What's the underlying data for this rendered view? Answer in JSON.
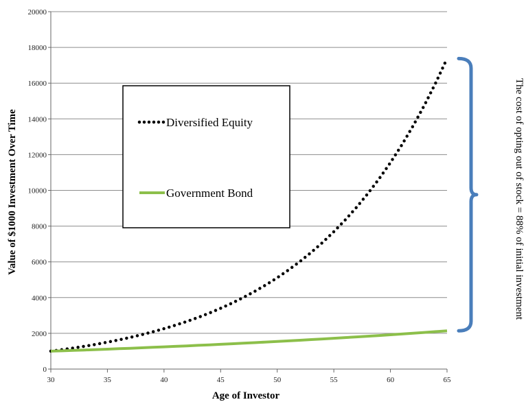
{
  "chart_data": {
    "type": "line",
    "title": "",
    "xlabel": "Age of Investor",
    "ylabel": "Value of $1000 Investment Over Time",
    "xlim": [
      30,
      65
    ],
    "ylim": [
      0,
      20000
    ],
    "x_ticks": [
      "30",
      "35",
      "40",
      "45",
      "50",
      "55",
      "60",
      "65"
    ],
    "y_ticks": [
      "0",
      "2000",
      "4000",
      "6000",
      "8000",
      "10000",
      "12000",
      "14000",
      "16000",
      "18000",
      "20000"
    ],
    "grid": true,
    "legend_position": "upper-left-center",
    "x": [
      30,
      31,
      32,
      33,
      34,
      35,
      36,
      37,
      38,
      39,
      40,
      41,
      42,
      43,
      44,
      45,
      46,
      47,
      48,
      49,
      50,
      51,
      52,
      53,
      54,
      55,
      56,
      57,
      58,
      59,
      60,
      61,
      62,
      63,
      64,
      65
    ],
    "series": [
      {
        "name": "Diversified Equity",
        "style": "dotted",
        "color": "#000000",
        "values": [
          1000,
          1085,
          1177,
          1277,
          1386,
          1504,
          1632,
          1770,
          1921,
          2084,
          2261,
          2453,
          2662,
          2888,
          3133,
          3400,
          3688,
          4002,
          4342,
          4711,
          5111,
          5546,
          6017,
          6528,
          7083,
          7685,
          8338,
          9047,
          9816,
          10650,
          11555,
          12537,
          13603,
          14759,
          16014,
          17375
        ]
      },
      {
        "name": "Government Bond",
        "style": "solid",
        "color": "#8cbf4a",
        "values": [
          1000,
          1022,
          1044,
          1067,
          1091,
          1115,
          1139,
          1164,
          1190,
          1216,
          1243,
          1270,
          1298,
          1327,
          1356,
          1386,
          1416,
          1447,
          1479,
          1512,
          1545,
          1579,
          1614,
          1649,
          1686,
          1723,
          1761,
          1799,
          1839,
          1879,
          1921,
          1963,
          2006,
          2050,
          2095,
          2141
        ]
      }
    ],
    "annotation": {
      "text": "The cost of opting out of stock =  88% of initial investment",
      "from_value": 2141,
      "to_value": 17375,
      "brace_color": "#4a7ebb"
    }
  }
}
